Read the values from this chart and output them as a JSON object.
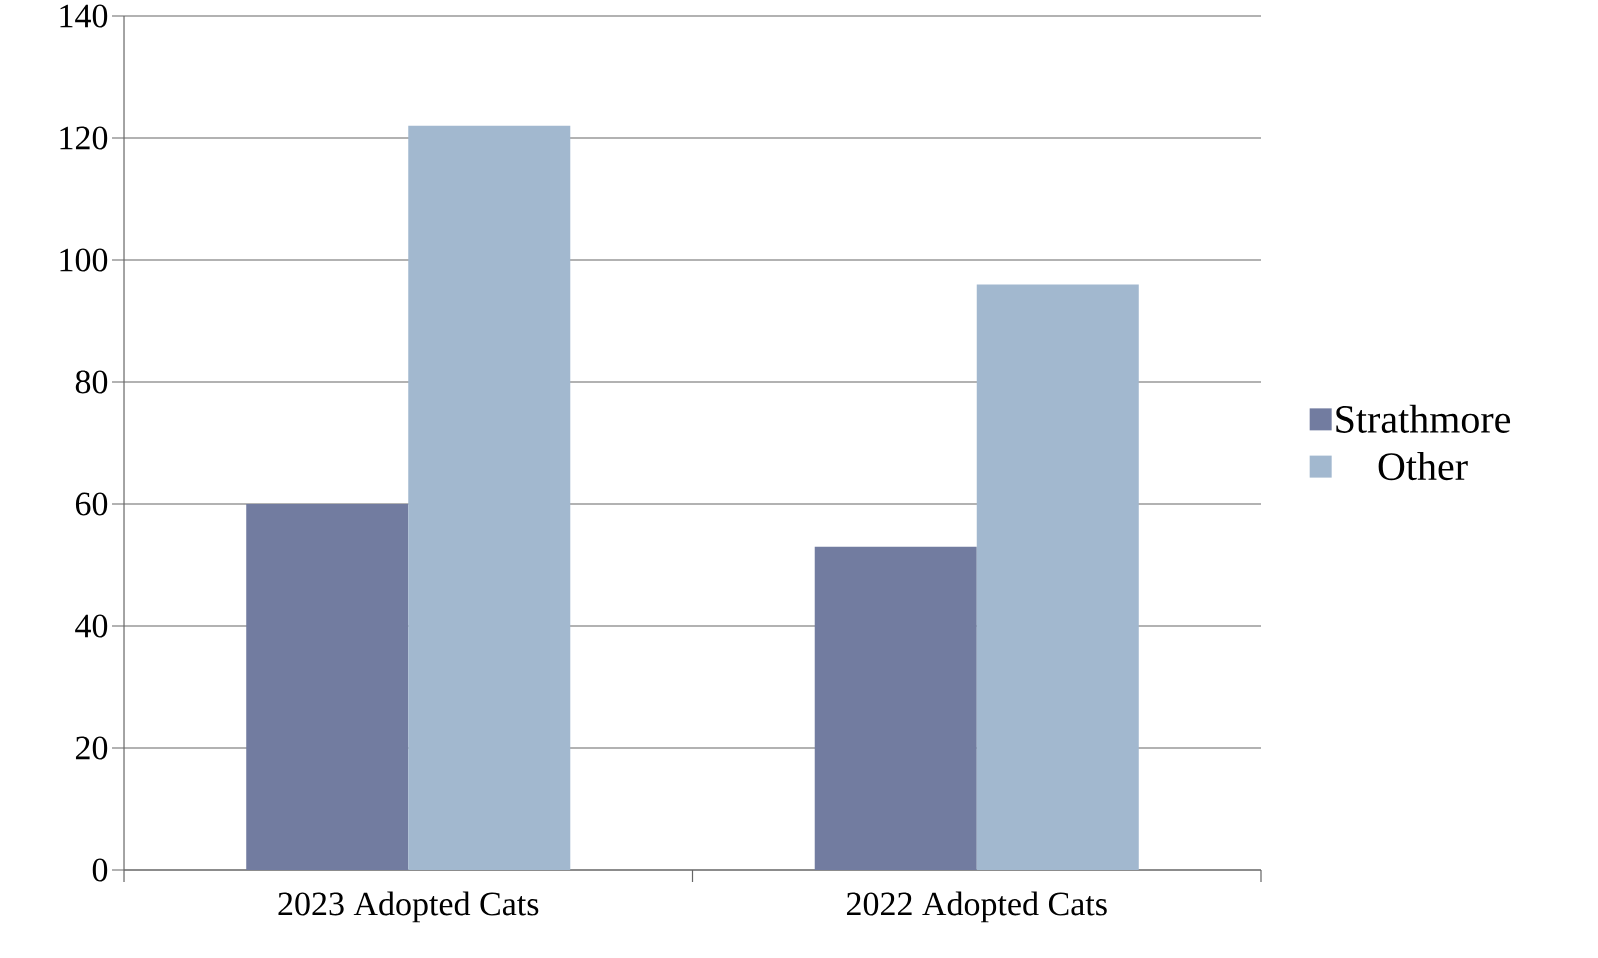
{
  "chart_data": {
    "type": "bar",
    "categories": [
      "2023 Adopted Cats",
      "2022 Adopted Cats"
    ],
    "series": [
      {
        "name": "Strathmore",
        "color": "#727ca0",
        "values": [
          60,
          53
        ]
      },
      {
        "name": "Other",
        "color": "#a2b8cf",
        "values": [
          122,
          96
        ]
      }
    ],
    "ylim": [
      0,
      140
    ],
    "yticks": [
      0,
      20,
      40,
      60,
      80,
      100,
      120,
      140
    ],
    "grid": "y",
    "legend": "right"
  }
}
